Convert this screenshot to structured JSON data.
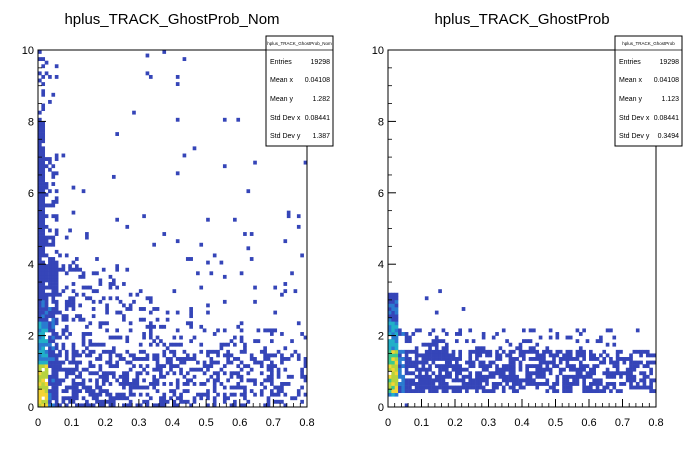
{
  "chart_data": [
    {
      "type": "heatmap",
      "title": "hplus_TRACK_GhostProb_Nom",
      "xlabel": "",
      "ylabel": "",
      "xlim": [
        0,
        0.8
      ],
      "ylim": [
        0,
        10
      ],
      "x_ticks": [
        "0",
        "0.1",
        "0.2",
        "0.3",
        "0.4",
        "0.5",
        "0.6",
        "0.7",
        "0.8"
      ],
      "y_ticks": [
        "0",
        "2",
        "4",
        "6",
        "8",
        "10"
      ],
      "stats_box": {
        "title": "hplus_TRACK_GhostProb_Nom",
        "rows": [
          {
            "label": "Entries",
            "value": "19298"
          },
          {
            "label": "Mean x",
            "value": "0.04108"
          },
          {
            "label": "Mean y",
            "value": "1.282"
          },
          {
            "label": "Std Dev x",
            "value": "0.08441"
          },
          {
            "label": "Std Dev y",
            "value": "1.387"
          }
        ]
      },
      "distribution": {
        "sparse_y_max": 8.0,
        "dense_x_max": 0.8,
        "sparse_density": 0.35,
        "isolated_points": [
          [
            0.33,
            9.2
          ],
          [
            0.42,
            9.0
          ],
          [
            0.28,
            8.2
          ],
          [
            0.42,
            8.0
          ],
          [
            0.55,
            8.0
          ],
          [
            0.6,
            8.0
          ],
          [
            0.44,
            7.0
          ],
          [
            0.55,
            6.7
          ],
          [
            0.8,
            6.8
          ],
          [
            0.41,
            6.5
          ],
          [
            0.47,
            7.2
          ]
        ],
        "color_scale": [
          "#3545b8",
          "#2a7bd0",
          "#21b0c8",
          "#3cc98f",
          "#b6d33e",
          "#f4d435"
        ]
      }
    },
    {
      "type": "heatmap",
      "title": "hplus_TRACK_GhostProb",
      "xlabel": "",
      "ylabel": "",
      "xlim": [
        0,
        0.8
      ],
      "ylim": [
        0,
        10
      ],
      "x_ticks": [
        "0",
        "0.1",
        "0.2",
        "0.3",
        "0.4",
        "0.5",
        "0.6",
        "0.7",
        "0.8"
      ],
      "y_ticks": [
        "0",
        "2",
        "4",
        "6",
        "8",
        "10"
      ],
      "stats_box": {
        "title": "hplus_TRACK_GhostProb",
        "rows": [
          {
            "label": "Entries",
            "value": "19298"
          },
          {
            "label": "Mean x",
            "value": "0.04108"
          },
          {
            "label": "Mean y",
            "value": "1.123"
          },
          {
            "label": "Std Dev x",
            "value": "0.08441"
          },
          {
            "label": "Std Dev y",
            "value": "0.3494"
          }
        ]
      },
      "distribution": {
        "band_y_min": 0.4,
        "band_y_max": 2.0,
        "sparse_y_max": 3.3,
        "dense_x_max": 0.8,
        "sparse_density": 0.5,
        "isolated_points": [
          [
            0.05,
            0.0
          ]
        ],
        "color_scale": [
          "#3545b8",
          "#2a7bd0",
          "#21b0c8",
          "#3cc98f",
          "#b6d33e",
          "#f4d435"
        ]
      }
    }
  ]
}
